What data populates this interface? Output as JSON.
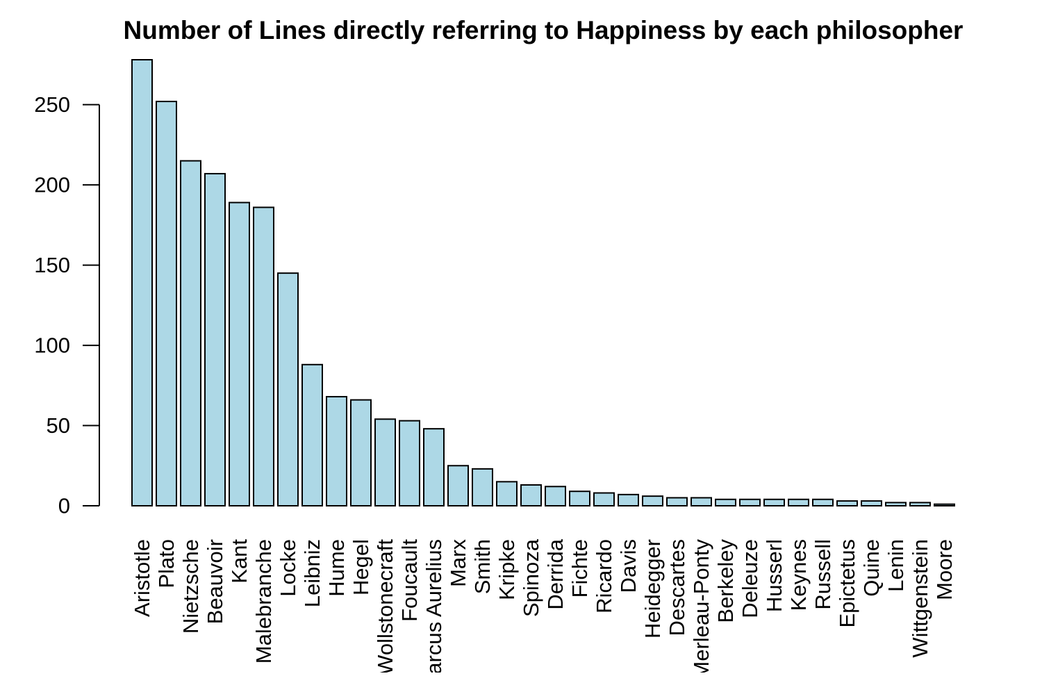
{
  "chart_data": {
    "type": "bar",
    "title": "Number of Lines directly referring to Happiness by each philosopher",
    "xlabel": "",
    "ylabel": "",
    "ylim": [
      0,
      278
    ],
    "yticks": [
      0,
      50,
      100,
      150,
      200,
      250
    ],
    "grid": false,
    "bar_color": "#add8e6",
    "bar_edge_color": "#000000",
    "categories": [
      "Aristotle",
      "Plato",
      "Nietzsche",
      "Beauvoir",
      "Kant",
      "Malebranche",
      "Locke",
      "Leibniz",
      "Hume",
      "Hegel",
      "Wollstonecraft",
      "Foucault",
      "Marcus Aurelius",
      "Marx",
      "Smith",
      "Kripke",
      "Spinoza",
      "Derrida",
      "Fichte",
      "Ricardo",
      "Davis",
      "Heidegger",
      "Descartes",
      "Merleau-Ponty",
      "Berkeley",
      "Deleuze",
      "Husserl",
      "Keynes",
      "Russell",
      "Epictetus",
      "Quine",
      "Lenin",
      "Wittgenstein",
      "Moore"
    ],
    "values": [
      278,
      252,
      215,
      207,
      189,
      186,
      145,
      88,
      68,
      66,
      54,
      53,
      48,
      25,
      23,
      15,
      13,
      12,
      9,
      8,
      7,
      6,
      5,
      5,
      4,
      4,
      4,
      4,
      4,
      3,
      3,
      2,
      2,
      1
    ]
  }
}
